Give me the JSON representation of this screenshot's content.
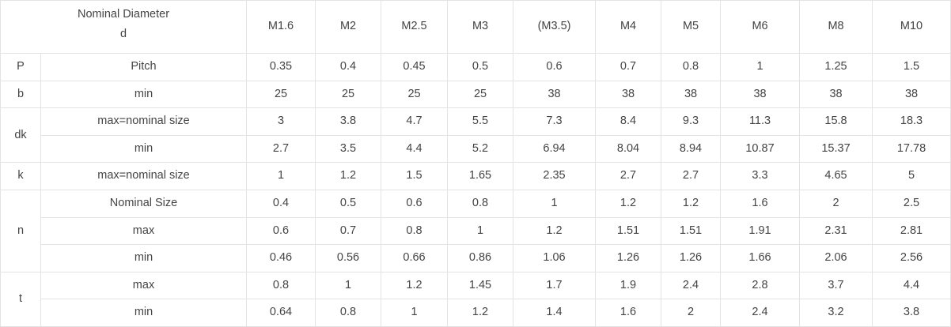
{
  "header": {
    "title_line1": "Nominal Diameter",
    "title_line2": "d",
    "sizes": [
      "M1.6",
      "M2",
      "M2.5",
      "M3",
      "(M3.5)",
      "M4",
      "M5",
      "M6",
      "M8",
      "M10"
    ]
  },
  "groups": [
    {
      "symbol": "P",
      "rows": [
        {
          "label": "Pitch",
          "values": [
            "0.35",
            "0.4",
            "0.45",
            "0.5",
            "0.6",
            "0.7",
            "0.8",
            "1",
            "1.25",
            "1.5"
          ]
        }
      ]
    },
    {
      "symbol": "b",
      "rows": [
        {
          "label": "min",
          "values": [
            "25",
            "25",
            "25",
            "25",
            "38",
            "38",
            "38",
            "38",
            "38",
            "38"
          ]
        }
      ]
    },
    {
      "symbol": "dk",
      "rows": [
        {
          "label": "max=nominal size",
          "values": [
            "3",
            "3.8",
            "4.7",
            "5.5",
            "7.3",
            "8.4",
            "9.3",
            "11.3",
            "15.8",
            "18.3"
          ]
        },
        {
          "label": "min",
          "values": [
            "2.7",
            "3.5",
            "4.4",
            "5.2",
            "6.94",
            "8.04",
            "8.94",
            "10.87",
            "15.37",
            "17.78"
          ]
        }
      ]
    },
    {
      "symbol": "k",
      "rows": [
        {
          "label": "max=nominal size",
          "values": [
            "1",
            "1.2",
            "1.5",
            "1.65",
            "2.35",
            "2.7",
            "2.7",
            "3.3",
            "4.65",
            "5"
          ]
        }
      ]
    },
    {
      "symbol": "n",
      "rows": [
        {
          "label": "Nominal Size",
          "values": [
            "0.4",
            "0.5",
            "0.6",
            "0.8",
            "1",
            "1.2",
            "1.2",
            "1.6",
            "2",
            "2.5"
          ]
        },
        {
          "label": "max",
          "values": [
            "0.6",
            "0.7",
            "0.8",
            "1",
            "1.2",
            "1.51",
            "1.51",
            "1.91",
            "2.31",
            "2.81"
          ]
        },
        {
          "label": "min",
          "values": [
            "0.46",
            "0.56",
            "0.66",
            "0.86",
            "1.06",
            "1.26",
            "1.26",
            "1.66",
            "2.06",
            "2.56"
          ]
        }
      ]
    },
    {
      "symbol": "t",
      "rows": [
        {
          "label": "max",
          "values": [
            "0.8",
            "1",
            "1.2",
            "1.45",
            "1.7",
            "1.9",
            "2.4",
            "2.8",
            "3.7",
            "4.4"
          ]
        },
        {
          "label": "min",
          "values": [
            "0.64",
            "0.8",
            "1",
            "1.2",
            "1.4",
            "1.6",
            "2",
            "2.4",
            "3.2",
            "3.8"
          ]
        }
      ]
    }
  ]
}
